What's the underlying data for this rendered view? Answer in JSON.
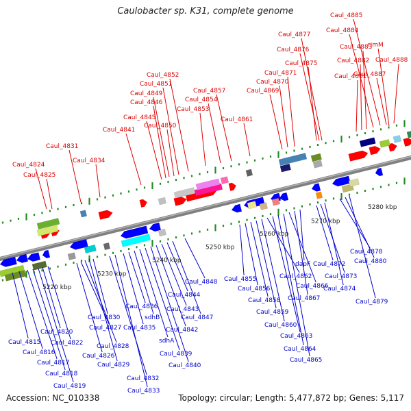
{
  "header": {
    "title": "Caulobacter sp. K31, complete genome",
    "accession": "Accession: NC_010338",
    "summary": "Topology: circular; Length: 5,477,872 bp; Genes: 5,117"
  },
  "colors": {
    "top_label": "#dd0000",
    "bottom_label": "#0000cc",
    "forward_feature": "#ff0000",
    "reverse_feature": "#0000ff",
    "backbone": "#808080",
    "tick": "#228b22"
  },
  "scale": {
    "axis_labels": [
      "5220 kbp",
      "5230 kbp",
      "5240 kbp",
      "5250 kbp",
      "5260 kbp",
      "5270 kbp",
      "5280 kbp"
    ]
  },
  "top_labels": [
    "Caul_4824",
    "Caul_4825",
    "Caul_4831",
    "Caul_4834",
    "Caul_4841",
    "Caul_4845",
    "Caul_4846",
    "Caul_4849",
    "Caul_4850",
    "Caul_4851",
    "Caul_4852",
    "Caul_4853",
    "Caul_4854",
    "Caul_4857",
    "Caul_4861",
    "Caul_4869",
    "Caul_4870",
    "Caul_4871",
    "Caul_4875",
    "Caul_4876",
    "Caul_4877",
    "Caul_4881",
    "Caul_4882",
    "Caul_4883",
    "Caul_4884",
    "Caul_4885",
    "Caul_4887",
    "Caul_4888",
    "rimM"
  ],
  "bottom_labels": [
    "Caul_4815",
    "Caul_4816",
    "Caul_4817",
    "Caul_4818",
    "Caul_4819",
    "Caul_4820",
    "Caul_4822",
    "Caul_4826",
    "Caul_4827",
    "Caul_4828",
    "Caul_4829",
    "Caul_4830",
    "Caul_4832",
    "Caul_4833",
    "Caul_4835",
    "Caul_4836",
    "sdhB",
    "sdhA",
    "Caul_4839",
    "Caul_4840",
    "Caul_4842",
    "Caul_4843",
    "Caul_4844",
    "Caul_4847",
    "Caul_4848",
    "Caul_4855",
    "Caul_4856",
    "Caul_4858",
    "Caul_4859",
    "Caul_4860",
    "Caul_4862",
    "Caul_4863",
    "Caul_4864",
    "Caul_4865",
    "Caul_4866",
    "Caul_4867",
    "dapF",
    "Caul_4872",
    "Caul_4873",
    "Caul_4874",
    "Caul_4878",
    "Caul_4879",
    "Caul_4880"
  ]
}
